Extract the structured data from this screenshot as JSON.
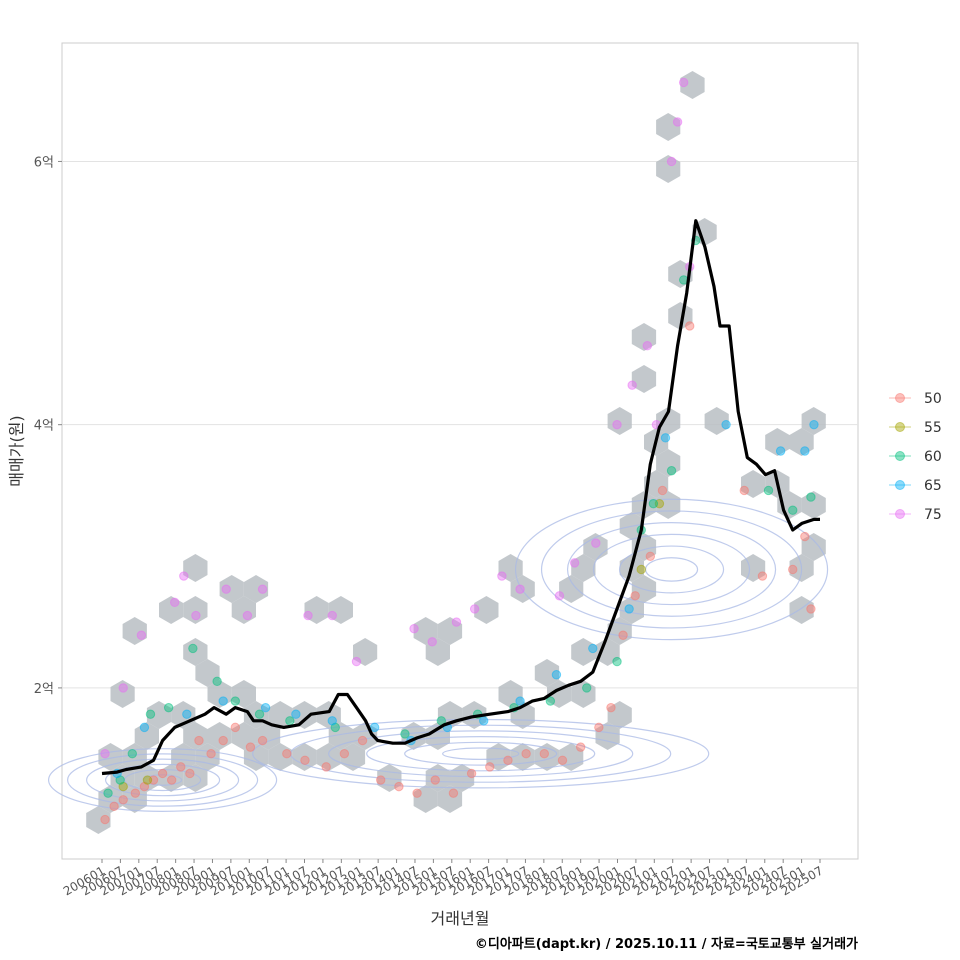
{
  "chart_data": {
    "type": "scatter",
    "xlabel": "거래년월",
    "ylabel": "매매가(원)",
    "caption": "©디아파트(dapt.kr) / 2025.10.11 / 자료=국토교통부 실거래가",
    "ylim": [
      0.7,
      6.9
    ],
    "y_ticks": [
      {
        "value": 2,
        "label": "2억"
      },
      {
        "value": 4,
        "label": "4억"
      },
      {
        "value": 6,
        "label": "6억"
      }
    ],
    "x_start": "2006-01",
    "x_end": "2025-10",
    "x_tick_labels": [
      "200601",
      "200607",
      "200701",
      "200707",
      "200801",
      "200807",
      "200901",
      "200907",
      "201001",
      "201007",
      "201101",
      "201107",
      "201201",
      "201207",
      "201301",
      "201307",
      "201401",
      "201407",
      "201501",
      "201507",
      "201601",
      "201607",
      "201701",
      "201707",
      "201801",
      "201807",
      "201901",
      "201907",
      "202001",
      "202007",
      "202101",
      "202107",
      "202201",
      "202207",
      "202301",
      "202307",
      "202401",
      "202407",
      "202501",
      "202507"
    ],
    "legend": {
      "title": "",
      "entries": [
        {
          "label": "50",
          "color": "#F8766D"
        },
        {
          "label": "55",
          "color": "#A3A500"
        },
        {
          "label": "60",
          "color": "#00BF7D"
        },
        {
          "label": "65",
          "color": "#00B0F6"
        },
        {
          "label": "75",
          "color": "#E76BF3"
        }
      ]
    },
    "series": [
      {
        "name": "50",
        "points": [
          [
            "2006-02",
            1.0
          ],
          [
            "2006-05",
            1.1
          ],
          [
            "2006-08",
            1.15
          ],
          [
            "2006-12",
            1.2
          ],
          [
            "2007-03",
            1.25
          ],
          [
            "2007-06",
            1.3
          ],
          [
            "2007-09",
            1.35
          ],
          [
            "2007-12",
            1.3
          ],
          [
            "2008-03",
            1.4
          ],
          [
            "2008-06",
            1.35
          ],
          [
            "2008-09",
            1.6
          ],
          [
            "2009-01",
            1.5
          ],
          [
            "2009-05",
            1.6
          ],
          [
            "2009-09",
            1.7
          ],
          [
            "2010-02",
            1.55
          ],
          [
            "2010-06",
            1.6
          ],
          [
            "2011-02",
            1.5
          ],
          [
            "2011-08",
            1.45
          ],
          [
            "2012-03",
            1.4
          ],
          [
            "2012-09",
            1.5
          ],
          [
            "2013-03",
            1.6
          ],
          [
            "2013-09",
            1.3
          ],
          [
            "2014-03",
            1.25
          ],
          [
            "2014-09",
            1.2
          ],
          [
            "2015-03",
            1.3
          ],
          [
            "2015-09",
            1.2
          ],
          [
            "2016-03",
            1.35
          ],
          [
            "2016-09",
            1.4
          ],
          [
            "2017-03",
            1.45
          ],
          [
            "2017-09",
            1.5
          ],
          [
            "2018-03",
            1.5
          ],
          [
            "2018-09",
            1.45
          ],
          [
            "2019-03",
            1.55
          ],
          [
            "2019-09",
            1.7
          ],
          [
            "2020-01",
            1.85
          ],
          [
            "2020-05",
            2.4
          ],
          [
            "2020-09",
            2.7
          ],
          [
            "2021-02",
            3.0
          ],
          [
            "2021-06",
            3.5
          ],
          [
            "2022-03",
            4.75
          ],
          [
            "2023-09",
            3.5
          ],
          [
            "2024-03",
            2.85
          ],
          [
            "2025-01",
            2.9
          ],
          [
            "2025-05",
            3.15
          ],
          [
            "2025-07",
            2.6
          ]
        ]
      },
      {
        "name": "55",
        "points": [
          [
            "2006-08",
            1.25
          ],
          [
            "2007-04",
            1.3
          ],
          [
            "2020-11",
            2.9
          ],
          [
            "2021-05",
            3.4
          ]
        ]
      },
      {
        "name": "60",
        "points": [
          [
            "2006-03",
            1.2
          ],
          [
            "2006-07",
            1.3
          ],
          [
            "2006-11",
            1.5
          ],
          [
            "2007-05",
            1.8
          ],
          [
            "2007-11",
            1.85
          ],
          [
            "2008-07",
            2.3
          ],
          [
            "2009-03",
            2.05
          ],
          [
            "2009-09",
            1.9
          ],
          [
            "2010-05",
            1.8
          ],
          [
            "2011-03",
            1.75
          ],
          [
            "2012-06",
            1.7
          ],
          [
            "2014-05",
            1.65
          ],
          [
            "2015-05",
            1.75
          ],
          [
            "2016-05",
            1.8
          ],
          [
            "2017-05",
            1.85
          ],
          [
            "2018-05",
            1.9
          ],
          [
            "2019-05",
            2.0
          ],
          [
            "2020-03",
            2.2
          ],
          [
            "2020-11",
            3.2
          ],
          [
            "2021-03",
            3.4
          ],
          [
            "2021-09",
            3.65
          ],
          [
            "2022-01",
            5.1
          ],
          [
            "2022-05",
            5.4
          ],
          [
            "2024-05",
            3.5
          ],
          [
            "2025-01",
            3.35
          ],
          [
            "2025-07",
            3.45
          ]
        ]
      },
      {
        "name": "65",
        "points": [
          [
            "2006-06",
            1.35
          ],
          [
            "2007-03",
            1.7
          ],
          [
            "2008-05",
            1.8
          ],
          [
            "2009-05",
            1.9
          ],
          [
            "2010-07",
            1.85
          ],
          [
            "2011-05",
            1.8
          ],
          [
            "2012-05",
            1.75
          ],
          [
            "2013-07",
            1.7
          ],
          [
            "2014-07",
            1.6
          ],
          [
            "2015-07",
            1.7
          ],
          [
            "2016-07",
            1.75
          ],
          [
            "2017-07",
            1.9
          ],
          [
            "2018-07",
            2.1
          ],
          [
            "2019-07",
            2.3
          ],
          [
            "2020-07",
            2.6
          ],
          [
            "2021-07",
            3.9
          ],
          [
            "2023-03",
            4.0
          ],
          [
            "2024-09",
            3.8
          ],
          [
            "2025-05",
            3.8
          ],
          [
            "2025-08",
            4.0
          ]
        ]
      },
      {
        "name": "75",
        "points": [
          [
            "2006-02",
            1.5
          ],
          [
            "2006-08",
            2.0
          ],
          [
            "2007-02",
            2.4
          ],
          [
            "2008-01",
            2.65
          ],
          [
            "2008-04",
            2.85
          ],
          [
            "2008-08",
            2.55
          ],
          [
            "2009-06",
            2.75
          ],
          [
            "2010-01",
            2.55
          ],
          [
            "2010-06",
            2.75
          ],
          [
            "2011-09",
            2.55
          ],
          [
            "2012-05",
            2.55
          ],
          [
            "2013-01",
            2.2
          ],
          [
            "2014-08",
            2.45
          ],
          [
            "2015-02",
            2.35
          ],
          [
            "2015-10",
            2.5
          ],
          [
            "2016-04",
            2.6
          ],
          [
            "2017-01",
            2.85
          ],
          [
            "2017-07",
            2.75
          ],
          [
            "2018-08",
            2.7
          ],
          [
            "2019-01",
            2.95
          ],
          [
            "2019-08",
            3.1
          ],
          [
            "2020-03",
            4.0
          ],
          [
            "2020-08",
            4.3
          ],
          [
            "2021-01",
            4.6
          ],
          [
            "2021-04",
            4.0
          ],
          [
            "2021-09",
            6.0
          ],
          [
            "2021-11",
            6.3
          ],
          [
            "2022-01",
            6.6
          ],
          [
            "2022-03",
            5.2
          ]
        ]
      }
    ],
    "trend_line": {
      "name": "median price",
      "color": "#000000",
      "points": [
        [
          "2006-01",
          1.35
        ],
        [
          "2006-06",
          1.36
        ],
        [
          "2006-09",
          1.38
        ],
        [
          "2007-02",
          1.4
        ],
        [
          "2007-06",
          1.45
        ],
        [
          "2007-09",
          1.6
        ],
        [
          "2008-01",
          1.7
        ],
        [
          "2008-06",
          1.75
        ],
        [
          "2008-11",
          1.8
        ],
        [
          "2009-02",
          1.85
        ],
        [
          "2009-06",
          1.8
        ],
        [
          "2009-09",
          1.85
        ],
        [
          "2010-01",
          1.82
        ],
        [
          "2010-03",
          1.75
        ],
        [
          "2010-06",
          1.75
        ],
        [
          "2010-09",
          1.72
        ],
        [
          "2011-01",
          1.7
        ],
        [
          "2011-06",
          1.72
        ],
        [
          "2011-10",
          1.8
        ],
        [
          "2012-04",
          1.82
        ],
        [
          "2012-07",
          1.95
        ],
        [
          "2012-10",
          1.95
        ],
        [
          "2013-01",
          1.85
        ],
        [
          "2013-04",
          1.75
        ],
        [
          "2013-06",
          1.65
        ],
        [
          "2013-08",
          1.6
        ],
        [
          "2014-01",
          1.58
        ],
        [
          "2014-05",
          1.58
        ],
        [
          "2014-09",
          1.62
        ],
        [
          "2015-01",
          1.65
        ],
        [
          "2015-06",
          1.72
        ],
        [
          "2015-10",
          1.75
        ],
        [
          "2016-03",
          1.78
        ],
        [
          "2016-09",
          1.8
        ],
        [
          "2017-03",
          1.82
        ],
        [
          "2017-07",
          1.85
        ],
        [
          "2017-11",
          1.9
        ],
        [
          "2018-03",
          1.92
        ],
        [
          "2018-07",
          1.98
        ],
        [
          "2018-11",
          2.02
        ],
        [
          "2019-03",
          2.05
        ],
        [
          "2019-07",
          2.12
        ],
        [
          "2019-11",
          2.35
        ],
        [
          "2020-03",
          2.6
        ],
        [
          "2020-07",
          2.85
        ],
        [
          "2020-11",
          3.2
        ],
        [
          "2021-02",
          3.7
        ],
        [
          "2021-05",
          3.98
        ],
        [
          "2021-08",
          4.1
        ],
        [
          "2021-11",
          4.6
        ],
        [
          "2022-02",
          5.0
        ],
        [
          "2022-05",
          5.55
        ],
        [
          "2022-08",
          5.35
        ],
        [
          "2022-11",
          5.05
        ],
        [
          "2023-01",
          4.75
        ],
        [
          "2023-04",
          4.75
        ],
        [
          "2023-07",
          4.1
        ],
        [
          "2023-10",
          3.75
        ],
        [
          "2024-01",
          3.7
        ],
        [
          "2024-04",
          3.62
        ],
        [
          "2024-07",
          3.65
        ],
        [
          "2024-10",
          3.35
        ],
        [
          "2025-01",
          3.2
        ],
        [
          "2025-04",
          3.25
        ],
        [
          "2025-08",
          3.28
        ],
        [
          "2025-10",
          3.28
        ]
      ]
    },
    "annotations": [
      "hexbin density (grey)",
      "2D density contours (blue)"
    ]
  }
}
